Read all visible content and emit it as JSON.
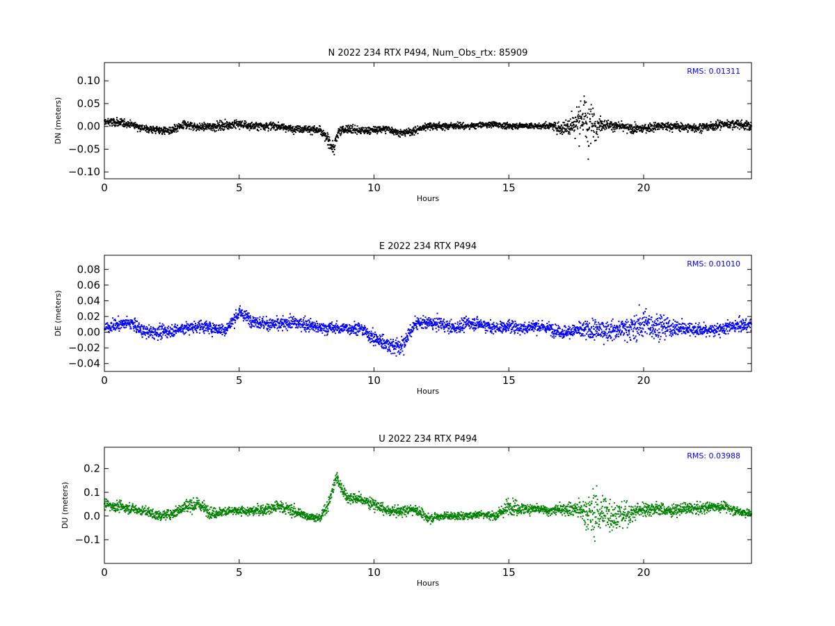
{
  "colors": {
    "background": "#ffffff",
    "axes": "#000000",
    "rms_text": "#0000ff"
  },
  "chart_data": [
    {
      "type": "scatter",
      "title": "N 2022 234 RTX  P494, Num_Obs_rtx: 85909",
      "xlabel": "Hours",
      "ylabel": "DN (meters)",
      "xlim": [
        0,
        24
      ],
      "ylim": [
        -0.115,
        0.14
      ],
      "xticks": [
        0,
        5,
        10,
        15,
        20
      ],
      "yticks": [
        -0.1,
        -0.05,
        0.0,
        0.05,
        0.1
      ],
      "ytick_labels": [
        "−0.10",
        "−0.05",
        "0.00",
        "0.05",
        "0.10"
      ],
      "annotation": "RMS:  0.01311",
      "series": [
        {
          "color": "#000000",
          "x": [
            0,
            0.5,
            1,
            1.5,
            2,
            2.5,
            3,
            3.5,
            4,
            4.5,
            5,
            5.5,
            6,
            6.5,
            7,
            7.5,
            8,
            8.3,
            8.5,
            8.7,
            9,
            9.5,
            10,
            10.5,
            11,
            11.5,
            12,
            12.5,
            13,
            13.5,
            14,
            14.5,
            15,
            15.5,
            16,
            16.5,
            17,
            17.5,
            17.8,
            18,
            18.2,
            18.5,
            19,
            19.5,
            20,
            20.5,
            21,
            21.5,
            22,
            22.5,
            23,
            23.5,
            24
          ],
          "y": [
            0.01,
            0.008,
            0.005,
            -0.005,
            -0.008,
            -0.01,
            0.005,
            -0.002,
            0,
            0.003,
            0.005,
            0,
            0.002,
            0,
            -0.005,
            -0.005,
            -0.01,
            -0.03,
            -0.05,
            -0.01,
            -0.005,
            -0.01,
            -0.008,
            -0.005,
            -0.015,
            -0.01,
            0.002,
            0,
            0.002,
            0,
            0.003,
            0.005,
            0,
            0.002,
            0,
            0.002,
            -0.005,
            0.01,
            0.02,
            0,
            0.005,
            0.005,
            0,
            -0.005,
            -0.005,
            0,
            0,
            -0.002,
            -0.003,
            0,
            0.005,
            0.005,
            0
          ],
          "spread": [
            0.012,
            0.012,
            0.01,
            0.01,
            0.012,
            0.012,
            0.012,
            0.01,
            0.012,
            0.012,
            0.012,
            0.012,
            0.012,
            0.01,
            0.01,
            0.01,
            0.012,
            0.015,
            0.02,
            0.015,
            0.014,
            0.01,
            0.01,
            0.01,
            0.01,
            0.01,
            0.01,
            0.01,
            0.008,
            0.008,
            0.008,
            0.008,
            0.008,
            0.008,
            0.008,
            0.008,
            0.02,
            0.045,
            0.06,
            0.07,
            0.04,
            0.015,
            0.012,
            0.012,
            0.012,
            0.012,
            0.012,
            0.012,
            0.012,
            0.012,
            0.012,
            0.012,
            0.012
          ]
        }
      ]
    },
    {
      "type": "scatter",
      "title": "E 2022 234 RTX  P494",
      "xlabel": "Hours",
      "ylabel": "DE (meters)",
      "xlim": [
        0,
        24
      ],
      "ylim": [
        -0.05,
        0.098
      ],
      "xticks": [
        0,
        5,
        10,
        15,
        20
      ],
      "yticks": [
        -0.04,
        -0.02,
        0.0,
        0.02,
        0.04,
        0.06,
        0.08
      ],
      "ytick_labels": [
        "−0.04",
        "−0.02",
        "0.00",
        "0.02",
        "0.04",
        "0.06",
        "0.08"
      ],
      "annotation": "RMS:  0.01010",
      "series": [
        {
          "color": "#0000ff",
          "x": [
            0,
            0.5,
            1,
            1.5,
            2,
            2.5,
            3,
            3.5,
            4,
            4.5,
            5,
            5.5,
            6,
            6.5,
            7,
            7.5,
            8,
            8.5,
            9,
            9.5,
            10,
            10.5,
            11,
            11.5,
            12,
            12.5,
            13,
            13.5,
            14,
            14.5,
            15,
            15.5,
            16,
            16.5,
            17,
            17.5,
            18,
            18.5,
            19,
            19.5,
            20,
            20.5,
            21,
            21.5,
            22,
            22.5,
            23,
            23.5,
            24
          ],
          "y": [
            0.005,
            0.01,
            0.012,
            0,
            0,
            0.002,
            0.005,
            0.008,
            0.005,
            0.003,
            0.025,
            0.015,
            0.01,
            0.01,
            0.012,
            0.01,
            0.005,
            0.005,
            0.005,
            0.005,
            -0.008,
            -0.015,
            -0.02,
            0.01,
            0.012,
            0.01,
            0.005,
            0.012,
            0.01,
            0.005,
            0.008,
            0.005,
            0.008,
            0.005,
            0,
            0.002,
            0.003,
            0.002,
            0.003,
            0.005,
            0.01,
            0.008,
            0.005,
            0.005,
            0.003,
            0.002,
            0.005,
            0.008,
            0.01
          ],
          "spread": [
            0.01,
            0.01,
            0.01,
            0.01,
            0.01,
            0.01,
            0.01,
            0.01,
            0.01,
            0.01,
            0.01,
            0.01,
            0.01,
            0.01,
            0.01,
            0.01,
            0.01,
            0.01,
            0.01,
            0.01,
            0.012,
            0.014,
            0.014,
            0.01,
            0.01,
            0.01,
            0.01,
            0.01,
            0.01,
            0.01,
            0.01,
            0.01,
            0.01,
            0.01,
            0.01,
            0.012,
            0.018,
            0.015,
            0.015,
            0.02,
            0.025,
            0.02,
            0.015,
            0.012,
            0.01,
            0.01,
            0.01,
            0.01,
            0.01
          ]
        }
      ]
    },
    {
      "type": "scatter",
      "title": "U 2022 234 RTX  P494",
      "xlabel": "Hours",
      "ylabel": "DU (meters)",
      "xlim": [
        0,
        24
      ],
      "ylim": [
        -0.2,
        0.29
      ],
      "xticks": [
        0,
        5,
        10,
        15,
        20
      ],
      "yticks": [
        -0.1,
        0.0,
        0.1,
        0.2
      ],
      "ytick_labels": [
        "−0.1",
        "0.0",
        "0.1",
        "0.2"
      ],
      "annotation": "RMS:  0.03988",
      "series": [
        {
          "color": "#008000",
          "x": [
            0,
            0.5,
            1,
            1.5,
            2,
            2.5,
            3,
            3.5,
            4,
            4.5,
            5,
            5.5,
            6,
            6.5,
            7,
            7.5,
            8,
            8.3,
            8.6,
            8.8,
            9,
            9.5,
            10,
            10.5,
            11,
            11.5,
            12,
            12.5,
            13,
            13.5,
            14,
            14.5,
            15,
            15.5,
            16,
            16.5,
            17,
            17.5,
            18,
            18.2,
            18.5,
            19,
            19.5,
            20,
            20.5,
            21,
            21.5,
            22,
            22.5,
            23,
            23.5,
            24
          ],
          "y": [
            0.05,
            0.04,
            0.03,
            0.02,
            0,
            0.01,
            0.04,
            0.05,
            0.01,
            0.02,
            0.02,
            0.02,
            0.03,
            0.04,
            0.02,
            0,
            -0.01,
            0.05,
            0.16,
            0.12,
            0.08,
            0.07,
            0.05,
            0.02,
            0.02,
            0.03,
            -0.01,
            0,
            0,
            0,
            0.01,
            0,
            0.04,
            0.03,
            0.03,
            0.02,
            0.03,
            0.03,
            0.01,
            0.01,
            0.02,
            0,
            0.01,
            0.03,
            0.03,
            0.02,
            0.03,
            0.03,
            0.04,
            0.04,
            0.02,
            0.01
          ],
          "spread": [
            0.03,
            0.03,
            0.025,
            0.025,
            0.025,
            0.025,
            0.04,
            0.035,
            0.03,
            0.025,
            0.025,
            0.025,
            0.03,
            0.035,
            0.03,
            0.02,
            0.02,
            0.03,
            0.04,
            0.035,
            0.03,
            0.03,
            0.03,
            0.025,
            0.025,
            0.03,
            0.025,
            0.02,
            0.02,
            0.02,
            0.02,
            0.025,
            0.04,
            0.035,
            0.03,
            0.025,
            0.03,
            0.05,
            0.1,
            0.12,
            0.1,
            0.08,
            0.05,
            0.04,
            0.035,
            0.03,
            0.03,
            0.03,
            0.025,
            0.025,
            0.025,
            0.02
          ]
        }
      ]
    }
  ]
}
